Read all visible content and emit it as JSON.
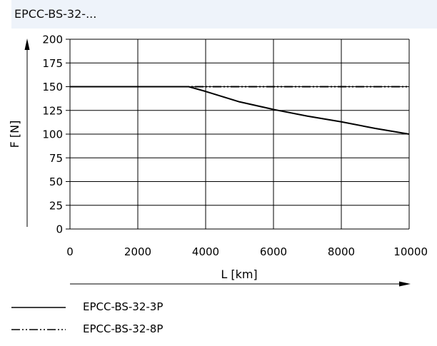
{
  "header": {
    "title": "EPCC-BS-32-..."
  },
  "chart_data": {
    "type": "line",
    "title": "EPCC-BS-32-...",
    "xlabel": "L [km]",
    "ylabel": "F [N]",
    "xlim": [
      0,
      10000
    ],
    "ylim": [
      0,
      200
    ],
    "xticks": [
      0,
      2000,
      4000,
      6000,
      8000,
      10000
    ],
    "yticks": [
      0,
      25,
      50,
      75,
      100,
      125,
      150,
      175,
      200
    ],
    "grid": true,
    "legend_position": "bottom-left",
    "series": [
      {
        "name": "EPCC-BS-32-3P",
        "style": "solid",
        "x": [
          0,
          3500,
          4000,
          5000,
          6000,
          7000,
          8000,
          9000,
          10000
        ],
        "y": [
          150,
          150,
          145,
          134,
          126,
          119,
          113,
          106,
          100
        ]
      },
      {
        "name": "EPCC-BS-32-8P",
        "style": "dash-dot-dot",
        "x": [
          0,
          10000
        ],
        "y": [
          150,
          150
        ]
      }
    ]
  },
  "legend": {
    "items": [
      {
        "label": "EPCC-BS-32-3P",
        "style": "solid"
      },
      {
        "label": "EPCC-BS-32-8P",
        "style": "dash-dot-dot"
      }
    ]
  }
}
